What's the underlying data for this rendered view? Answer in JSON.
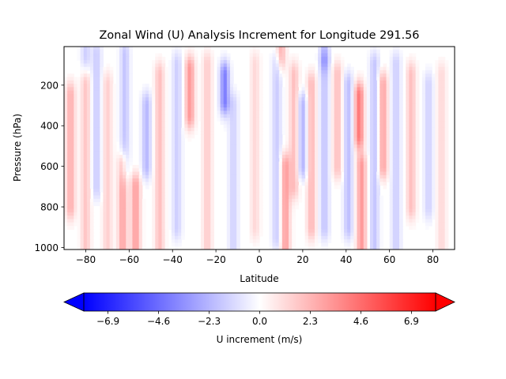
{
  "chart_data": {
    "type": "heatmap",
    "title": "Zonal Wind (U) Analysis Increment for Longitude 291.56",
    "xlabel": "Latitude",
    "ylabel": "Pressure (hPa)",
    "xlim": [
      -90,
      90
    ],
    "ylim": [
      1010,
      10
    ],
    "y_inverted": true,
    "x_ticks": [
      -80,
      -60,
      -40,
      -20,
      0,
      20,
      40,
      60,
      80
    ],
    "x_tick_labels": [
      "−80",
      "−60",
      "−40",
      "−20",
      "0",
      "20",
      "40",
      "60",
      "80"
    ],
    "y_ticks": [
      200,
      400,
      600,
      800,
      1000
    ],
    "y_tick_labels": [
      "200",
      "400",
      "600",
      "800",
      "1000"
    ],
    "grid": false,
    "colormap": "bwr",
    "colormap_stops": [
      "#0000ff",
      "#ffffff",
      "#ff0000"
    ],
    "colorbar": {
      "label": "U increment (m/s)",
      "orientation": "horizontal",
      "extend": "both",
      "vmin": -8.0,
      "vmax": 8.0,
      "ticks": [
        -6.9,
        -4.6,
        -2.3,
        0.0,
        2.3,
        4.6,
        6.9
      ],
      "tick_labels": [
        "−6.9",
        "−4.6",
        "−2.3",
        "0.0",
        "2.3",
        "4.6",
        "6.9"
      ]
    },
    "features": [
      {
        "lat": -87,
        "p_min": 250,
        "p_max": 800,
        "u": 2.5
      },
      {
        "lat": -80,
        "p_min": 200,
        "p_max": 1000,
        "u": 1.8
      },
      {
        "lat": -75,
        "p_min": 50,
        "p_max": 700,
        "u": -1.6
      },
      {
        "lat": -70,
        "p_min": 200,
        "p_max": 1000,
        "u": 1.5
      },
      {
        "lat": -63,
        "p_min": 600,
        "p_max": 1010,
        "u": 2.8
      },
      {
        "lat": -62,
        "p_min": 50,
        "p_max": 600,
        "u": -1.8
      },
      {
        "lat": -57,
        "p_min": 700,
        "p_max": 1000,
        "u": 3.0
      },
      {
        "lat": -52,
        "p_min": 300,
        "p_max": 600,
        "u": -2.2
      },
      {
        "lat": -46,
        "p_min": 150,
        "p_max": 1000,
        "u": 2.0
      },
      {
        "lat": -38,
        "p_min": 100,
        "p_max": 900,
        "u": -1.5
      },
      {
        "lat": -32,
        "p_min": 120,
        "p_max": 350,
        "u": 3.2
      },
      {
        "lat": -24,
        "p_min": 100,
        "p_max": 1000,
        "u": 1.6
      },
      {
        "lat": -16,
        "p_min": 150,
        "p_max": 280,
        "u": -4.0
      },
      {
        "lat": -12,
        "p_min": 300,
        "p_max": 1000,
        "u": -1.4
      },
      {
        "lat": -2,
        "p_min": 100,
        "p_max": 900,
        "u": 1.2
      },
      {
        "lat": 8,
        "p_min": 100,
        "p_max": 950,
        "u": -1.6
      },
      {
        "lat": 12,
        "p_min": 600,
        "p_max": 1010,
        "u": 3.0
      },
      {
        "lat": 16,
        "p_min": 150,
        "p_max": 700,
        "u": 2.0
      },
      {
        "lat": 20,
        "p_min": 300,
        "p_max": 600,
        "u": -2.4
      },
      {
        "lat": 24,
        "p_min": 200,
        "p_max": 900,
        "u": 2.2
      },
      {
        "lat": 30,
        "p_min": 100,
        "p_max": 900,
        "u": -1.8
      },
      {
        "lat": 36,
        "p_min": 150,
        "p_max": 600,
        "u": 2.0
      },
      {
        "lat": 41,
        "p_min": 200,
        "p_max": 900,
        "u": -2.0
      },
      {
        "lat": 46,
        "p_min": 250,
        "p_max": 450,
        "u": 4.2
      },
      {
        "lat": 47,
        "p_min": 600,
        "p_max": 1000,
        "u": 3.2
      },
      {
        "lat": 53,
        "p_min": 100,
        "p_max": 1000,
        "u": -1.8
      },
      {
        "lat": 57,
        "p_min": 200,
        "p_max": 600,
        "u": 2.8
      },
      {
        "lat": 63,
        "p_min": 100,
        "p_max": 1000,
        "u": -1.5
      },
      {
        "lat": 70,
        "p_min": 150,
        "p_max": 800,
        "u": 2.0
      },
      {
        "lat": 78,
        "p_min": 200,
        "p_max": 800,
        "u": -1.4
      },
      {
        "lat": 84,
        "p_min": 150,
        "p_max": 1000,
        "u": 1.2
      },
      {
        "lat": -80,
        "p_min": 10,
        "p_max": 60,
        "u": -1.5
      },
      {
        "lat": 10,
        "p_min": 10,
        "p_max": 60,
        "u": 2.5
      },
      {
        "lat": 30,
        "p_min": 10,
        "p_max": 60,
        "u": -2.0
      }
    ]
  }
}
